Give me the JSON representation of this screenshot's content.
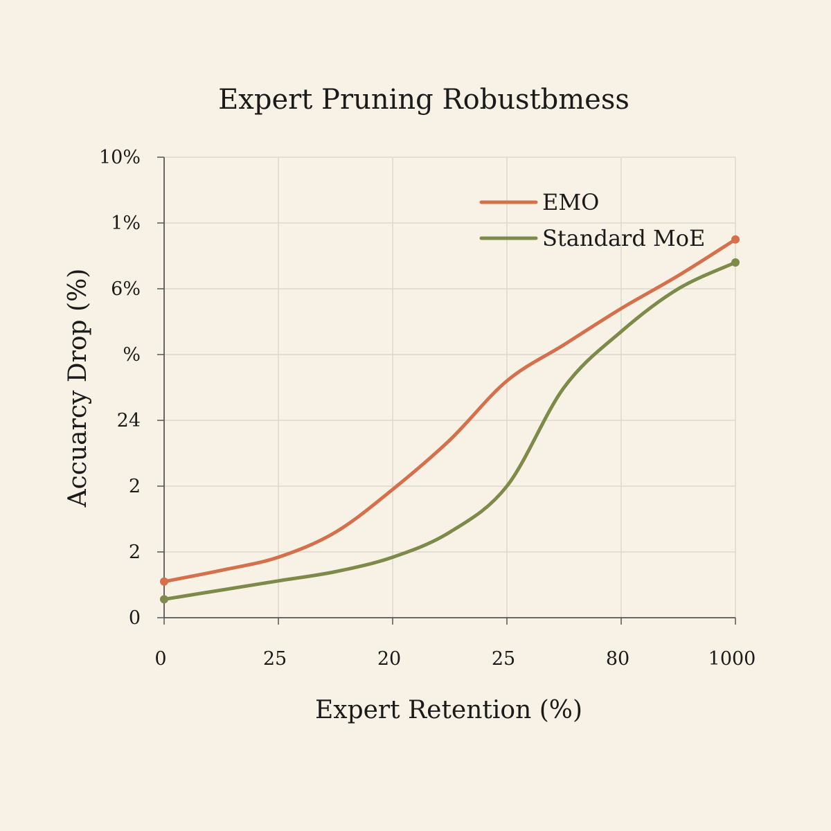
{
  "chart_data": {
    "type": "line",
    "title": "Expert Pruning Robustbmess",
    "xlabel": "Expert Retention (%)",
    "ylabel": "Accuarcy Drop (%)",
    "x_tick_labels": [
      "0",
      "25",
      "20",
      "25",
      "80",
      "1000"
    ],
    "y_tick_labels": [
      "0",
      "2",
      "2",
      "24",
      "%",
      "6%",
      "1%",
      "10%"
    ],
    "x": [
      0,
      1,
      2,
      3,
      4,
      5
    ],
    "xlim": [
      0,
      5
    ],
    "ylim": [
      0,
      7
    ],
    "grid": true,
    "legend_position": "top-right",
    "series": [
      {
        "name": "EMO",
        "color": "#d4704c",
        "x": [
          0,
          0.5,
          1,
          1.5,
          2,
          2.5,
          3,
          3.5,
          4,
          4.5,
          5
        ],
        "values": [
          0.55,
          0.72,
          0.92,
          1.3,
          1.95,
          2.7,
          3.6,
          4.15,
          4.7,
          5.2,
          5.75
        ]
      },
      {
        "name": "Standard MoE",
        "color": "#7d8a4a",
        "x": [
          0,
          0.5,
          1,
          1.5,
          2,
          2.5,
          3,
          3.5,
          4,
          4.5,
          5
        ],
        "values": [
          0.28,
          0.42,
          0.56,
          0.7,
          0.92,
          1.3,
          2.0,
          3.5,
          4.35,
          5.0,
          5.4
        ]
      }
    ]
  }
}
